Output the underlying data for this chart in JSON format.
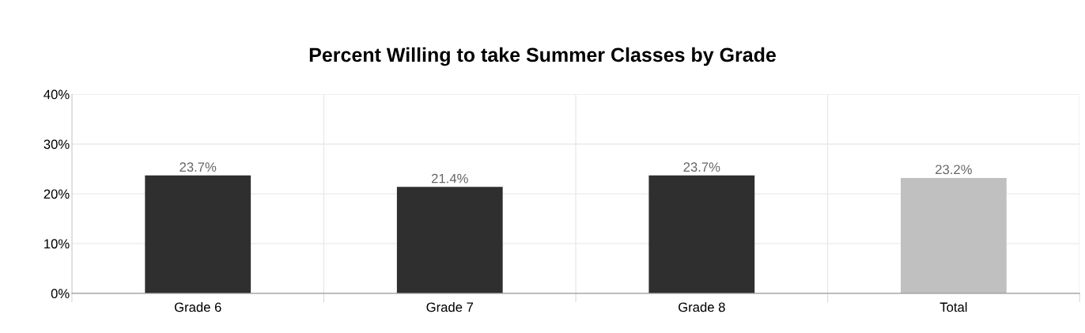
{
  "chart_data": {
    "type": "bar",
    "title": "Percent Willing to take Summer Classes by Grade",
    "categories": [
      "Grade 6",
      "Grade 7",
      "Grade 8",
      "Total"
    ],
    "values": [
      23.7,
      21.4,
      23.7,
      23.2
    ],
    "colors": [
      "#2f2f2f",
      "#2f2f2f",
      "#2f2f2f",
      "#c0c0c0"
    ],
    "value_labels": [
      "23.7%",
      "21.4%",
      "23.7%",
      "23.2%"
    ],
    "ylim": [
      0,
      40
    ],
    "yticks": [
      {
        "value": 0,
        "label": "0%"
      },
      {
        "value": 10,
        "label": "10%"
      },
      {
        "value": 20,
        "label": "20%"
      },
      {
        "value": 30,
        "label": "30%"
      },
      {
        "value": 40,
        "label": "40%"
      }
    ],
    "grid": true
  }
}
